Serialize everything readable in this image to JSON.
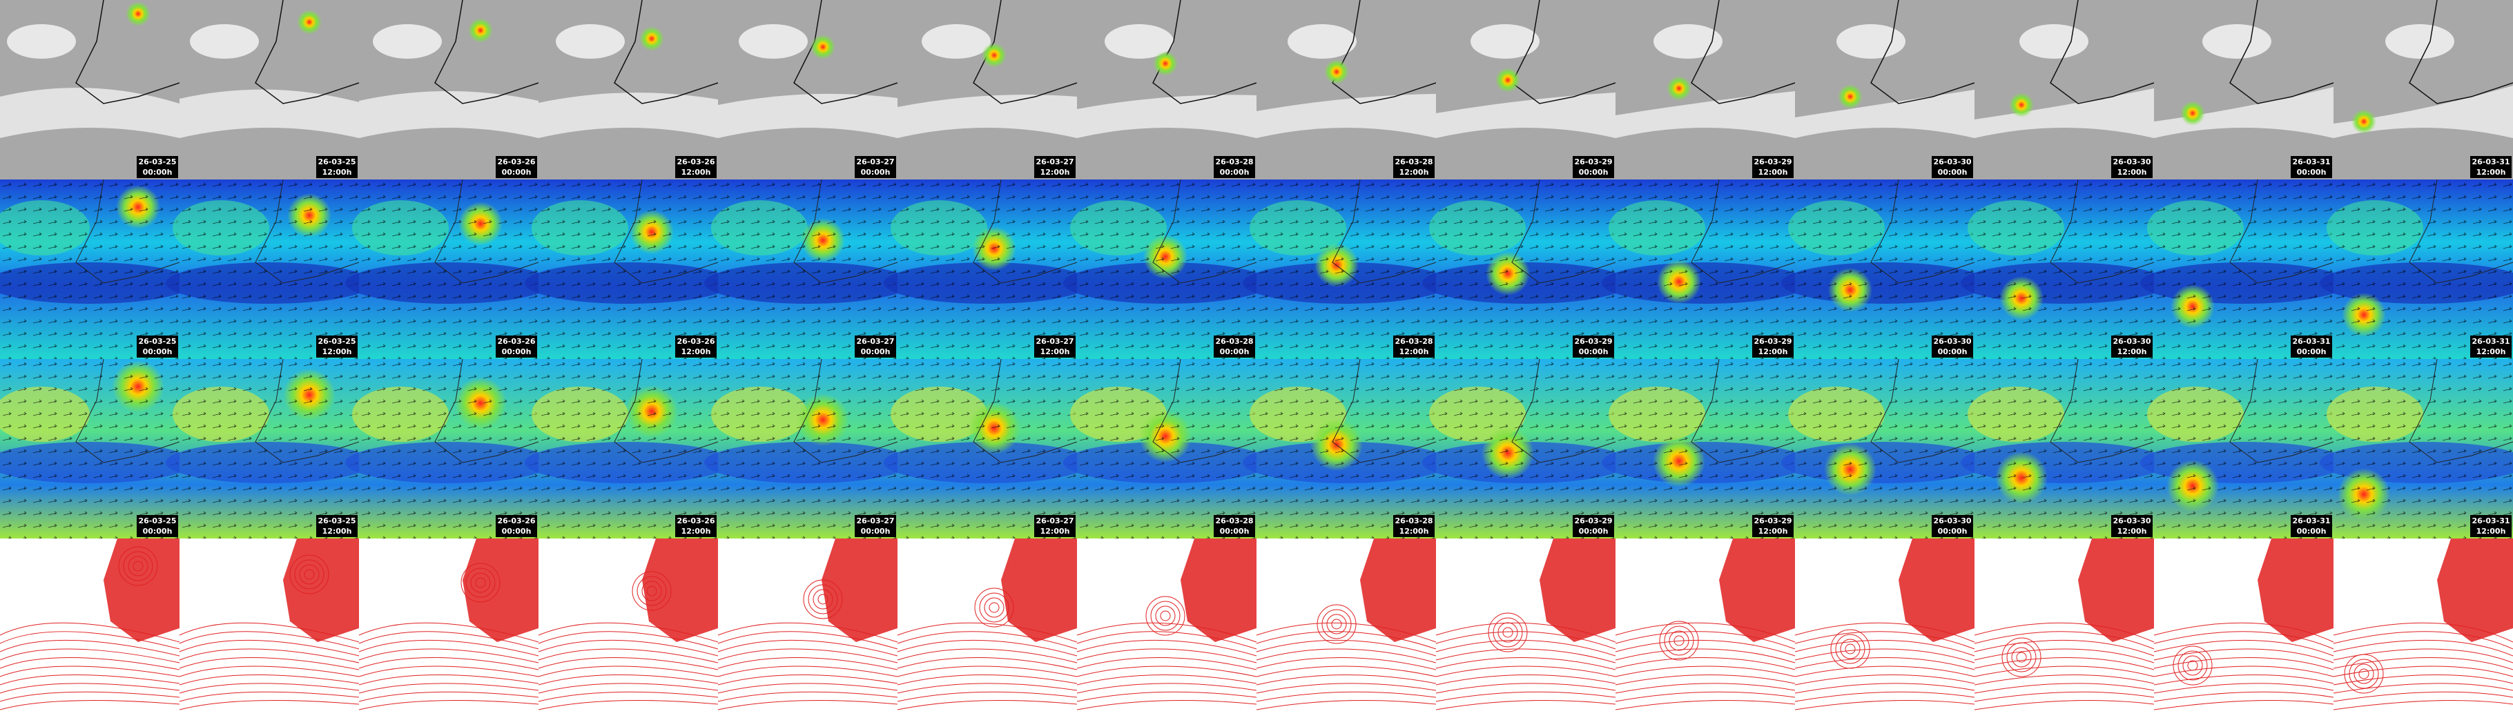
{
  "frames": [
    {
      "date": "26-03-25",
      "time": "00:00h"
    },
    {
      "date": "26-03-25",
      "time": "12:00h"
    },
    {
      "date": "26-03-26",
      "time": "00:00h"
    },
    {
      "date": "26-03-26",
      "time": "12:00h"
    },
    {
      "date": "26-03-27",
      "time": "00:00h"
    },
    {
      "date": "26-03-27",
      "time": "12:00h"
    },
    {
      "date": "26-03-28",
      "time": "00:00h"
    },
    {
      "date": "26-03-28",
      "time": "12:00h"
    },
    {
      "date": "26-03-29",
      "time": "00:00h"
    },
    {
      "date": "26-03-29",
      "time": "12:00h"
    },
    {
      "date": "26-03-30",
      "time": "00:00h"
    },
    {
      "date": "26-03-30",
      "time": "12:00h"
    },
    {
      "date": "26-03-31",
      "time": "00:00h"
    },
    {
      "date": "26-03-31",
      "time": "12:00h"
    }
  ]
}
